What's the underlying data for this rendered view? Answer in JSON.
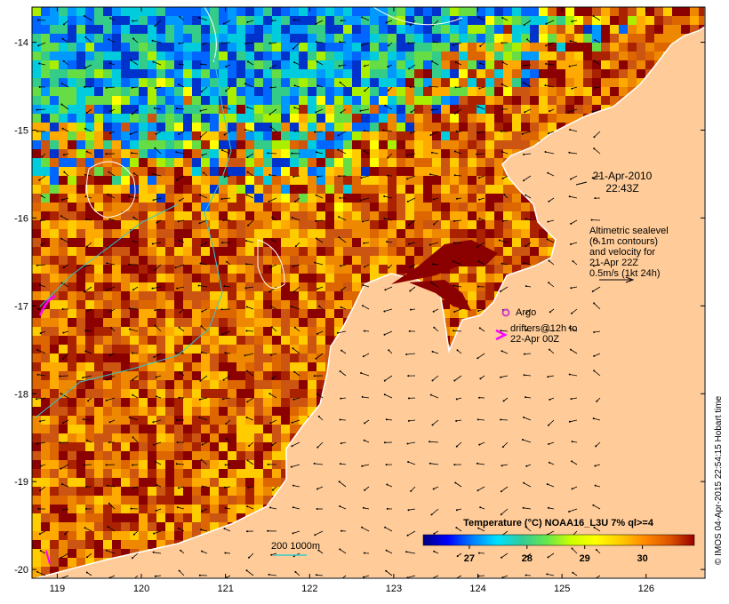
{
  "map": {
    "lon_range": [
      118.7,
      126.7
    ],
    "lat_range": [
      -20.1,
      -13.6
    ],
    "lon_ticks": [
      119,
      120,
      121,
      122,
      123,
      124,
      125,
      126
    ],
    "lat_ticks": [
      -14,
      -15,
      -16,
      -17,
      -18,
      -19,
      -20
    ],
    "land_color": "#ffcc99"
  },
  "annotations": {
    "date": "21-Apr-2010",
    "time": "22:43Z",
    "altimetry_lines": [
      "Altimetric sealevel",
      "(0.1m contours)",
      "and velocity for",
      "21-Apr 22Z",
      "0.5m/s (1kt 24h)"
    ],
    "argo_label": "Argo",
    "argo_marker_color": "#cc33cc",
    "drifters_line1": "drifters@12h to",
    "drifters_line2": "22-Apr 00Z",
    "drifter_color": "#ff00ff",
    "bathy_label": "200 1000m",
    "bathy_color": "#33cccc"
  },
  "colorbar": {
    "title": "Temperature (°C) NOAA16_L3U 7% ql>=4",
    "min": 26.2,
    "max": 30.9,
    "ticks": [
      "27",
      "28",
      "29",
      "30"
    ],
    "tick_values": [
      27,
      28,
      29,
      30
    ],
    "stops": [
      "#00007f",
      "#0000ff",
      "#0080ff",
      "#00e0ff",
      "#33cc99",
      "#66e64d",
      "#ccff00",
      "#ffff00",
      "#ffcc00",
      "#ff8800",
      "#dd5500",
      "#990000"
    ]
  },
  "credit": "© IMOS 04-Apr-2015 22:54:15 Hobart time"
}
